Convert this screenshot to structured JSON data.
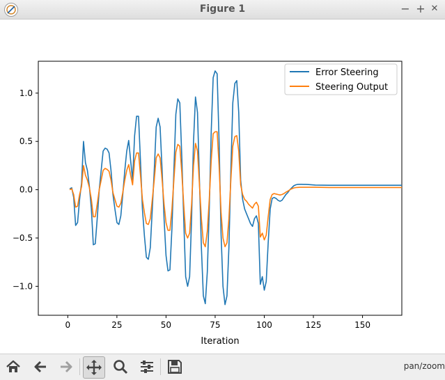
{
  "window": {
    "title": "Figure 1",
    "controls": {
      "minimize": "−",
      "maximize": "+",
      "close": "✕"
    }
  },
  "toolbar": {
    "buttons": [
      "home-icon",
      "back-icon",
      "forward-icon",
      "pan-icon",
      "zoom-icon",
      "configure-subplots-icon",
      "save-icon"
    ],
    "active": "pan-icon",
    "mode_text": "pan/zoom"
  },
  "chart_data": {
    "type": "line",
    "xlabel": "Iteration",
    "ylabel": "",
    "title": "",
    "xlim": [
      -15,
      170
    ],
    "ylim": [
      -1.3,
      1.33
    ],
    "xticks": [
      0,
      25,
      50,
      75,
      100,
      125,
      150
    ],
    "yticks": [
      -1.0,
      -0.5,
      0.0,
      0.5,
      1.0
    ],
    "xtick_labels": [
      "0",
      "25",
      "50",
      "75",
      "100",
      "125",
      "150"
    ],
    "ytick_labels": [
      "−1.0",
      "−0.5",
      "0.0",
      "0.5",
      "1.0"
    ],
    "legend": "top-right",
    "series": [
      {
        "name": "Error Steering",
        "color": "#1f77b4",
        "points": [
          [
            1,
            0.01
          ],
          [
            2,
            0.02
          ],
          [
            3,
            -0.08
          ],
          [
            4,
            -0.37
          ],
          [
            5,
            -0.34
          ],
          [
            6,
            -0.1
          ],
          [
            7,
            0.07
          ],
          [
            8,
            0.5
          ],
          [
            9,
            0.28
          ],
          [
            10,
            0.2
          ],
          [
            11,
            0.03
          ],
          [
            12,
            -0.2
          ],
          [
            13,
            -0.57
          ],
          [
            14,
            -0.56
          ],
          [
            15,
            -0.3
          ],
          [
            16,
            0.0
          ],
          [
            17,
            0.2
          ],
          [
            18,
            0.4
          ],
          [
            19,
            0.43
          ],
          [
            20,
            0.42
          ],
          [
            21,
            0.38
          ],
          [
            22,
            0.2
          ],
          [
            23,
            -0.05
          ],
          [
            24,
            -0.2
          ],
          [
            25,
            -0.34
          ],
          [
            26,
            -0.36
          ],
          [
            27,
            -0.27
          ],
          [
            28,
            -0.05
          ],
          [
            29,
            0.2
          ],
          [
            30,
            0.4
          ],
          [
            31,
            0.51
          ],
          [
            32,
            0.3
          ],
          [
            33,
            0.1
          ],
          [
            34,
            0.56
          ],
          [
            35,
            0.76
          ],
          [
            36,
            0.76
          ],
          [
            37,
            0.3
          ],
          [
            38,
            -0.2
          ],
          [
            39,
            -0.48
          ],
          [
            40,
            -0.7
          ],
          [
            41,
            -0.72
          ],
          [
            42,
            -0.6
          ],
          [
            43,
            -0.2
          ],
          [
            44,
            0.2
          ],
          [
            45,
            0.65
          ],
          [
            46,
            0.74
          ],
          [
            47,
            0.65
          ],
          [
            48,
            0.2
          ],
          [
            49,
            -0.3
          ],
          [
            50,
            -0.68
          ],
          [
            51,
            -0.84
          ],
          [
            52,
            -0.83
          ],
          [
            53,
            -0.4
          ],
          [
            54,
            0.2
          ],
          [
            55,
            0.78
          ],
          [
            56,
            0.94
          ],
          [
            57,
            0.9
          ],
          [
            58,
            0.35
          ],
          [
            59,
            -0.3
          ],
          [
            60,
            -0.9
          ],
          [
            61,
            -1.0
          ],
          [
            62,
            -0.9
          ],
          [
            63,
            -0.3
          ],
          [
            64,
            0.5
          ],
          [
            65,
            0.96
          ],
          [
            66,
            0.8
          ],
          [
            67,
            0.1
          ],
          [
            68,
            -0.6
          ],
          [
            69,
            -1.1
          ],
          [
            70,
            -1.18
          ],
          [
            71,
            -0.85
          ],
          [
            72,
            -0.2
          ],
          [
            73,
            0.6
          ],
          [
            74,
            1.16
          ],
          [
            75,
            1.23
          ],
          [
            76,
            1.2
          ],
          [
            77,
            0.5
          ],
          [
            78,
            -0.45
          ],
          [
            79,
            -1.0
          ],
          [
            80,
            -1.19
          ],
          [
            81,
            -1.1
          ],
          [
            82,
            -0.6
          ],
          [
            83,
            0.2
          ],
          [
            84,
            0.9
          ],
          [
            85,
            1.1
          ],
          [
            86,
            1.13
          ],
          [
            87,
            0.8
          ],
          [
            88,
            0.1
          ],
          [
            89,
            -0.1
          ],
          [
            90,
            -0.2
          ],
          [
            91,
            -0.25
          ],
          [
            92,
            -0.3
          ],
          [
            93,
            -0.35
          ],
          [
            94,
            -0.38
          ],
          [
            95,
            -0.3
          ],
          [
            96,
            -0.27
          ],
          [
            97,
            -0.35
          ],
          [
            98,
            -0.98
          ],
          [
            99,
            -0.9
          ],
          [
            100,
            -1.04
          ],
          [
            101,
            -0.95
          ],
          [
            102,
            -0.55
          ],
          [
            103,
            -0.2
          ],
          [
            104,
            -0.09
          ],
          [
            105,
            -0.08
          ],
          [
            106,
            -0.09
          ],
          [
            107,
            -0.11
          ],
          [
            108,
            -0.12
          ],
          [
            109,
            -0.11
          ],
          [
            110,
            -0.08
          ],
          [
            111,
            -0.05
          ],
          [
            112,
            -0.03
          ],
          [
            113,
            0.0
          ],
          [
            114,
            0.02
          ],
          [
            115,
            0.04
          ],
          [
            116,
            0.05
          ],
          [
            117,
            0.055
          ],
          [
            118,
            0.056
          ],
          [
            119,
            0.056
          ],
          [
            120,
            0.055
          ],
          [
            121,
            0.055
          ],
          [
            122,
            0.054
          ],
          [
            126,
            0.048
          ],
          [
            133,
            0.046
          ],
          [
            170,
            0.046
          ]
        ]
      },
      {
        "name": "Steering Output",
        "color": "#ff7f0e",
        "points": [
          [
            1,
            0.0
          ],
          [
            2,
            0.01
          ],
          [
            3,
            -0.05
          ],
          [
            4,
            -0.18
          ],
          [
            5,
            -0.17
          ],
          [
            6,
            -0.05
          ],
          [
            7,
            0.03
          ],
          [
            8,
            0.25
          ],
          [
            9,
            0.15
          ],
          [
            10,
            0.1
          ],
          [
            11,
            0.02
          ],
          [
            12,
            -0.1
          ],
          [
            13,
            -0.28
          ],
          [
            14,
            -0.28
          ],
          [
            15,
            -0.15
          ],
          [
            16,
            0.0
          ],
          [
            17,
            0.1
          ],
          [
            18,
            0.2
          ],
          [
            19,
            0.22
          ],
          [
            20,
            0.21
          ],
          [
            21,
            0.19
          ],
          [
            22,
            0.1
          ],
          [
            23,
            -0.03
          ],
          [
            24,
            -0.1
          ],
          [
            25,
            -0.17
          ],
          [
            26,
            -0.18
          ],
          [
            27,
            -0.14
          ],
          [
            28,
            -0.03
          ],
          [
            29,
            0.1
          ],
          [
            30,
            0.2
          ],
          [
            31,
            0.26
          ],
          [
            32,
            0.15
          ],
          [
            33,
            0.05
          ],
          [
            34,
            0.3
          ],
          [
            35,
            0.38
          ],
          [
            36,
            0.38
          ],
          [
            37,
            0.15
          ],
          [
            38,
            -0.1
          ],
          [
            39,
            -0.24
          ],
          [
            40,
            -0.35
          ],
          [
            41,
            -0.36
          ],
          [
            42,
            -0.3
          ],
          [
            43,
            -0.1
          ],
          [
            44,
            0.1
          ],
          [
            45,
            0.33
          ],
          [
            46,
            0.37
          ],
          [
            47,
            0.33
          ],
          [
            48,
            0.1
          ],
          [
            49,
            -0.15
          ],
          [
            50,
            -0.34
          ],
          [
            51,
            -0.42
          ],
          [
            52,
            -0.42
          ],
          [
            53,
            -0.2
          ],
          [
            54,
            0.1
          ],
          [
            55,
            0.39
          ],
          [
            56,
            0.47
          ],
          [
            57,
            0.45
          ],
          [
            58,
            0.18
          ],
          [
            59,
            -0.15
          ],
          [
            60,
            -0.45
          ],
          [
            61,
            -0.5
          ],
          [
            62,
            -0.45
          ],
          [
            63,
            -0.15
          ],
          [
            64,
            0.25
          ],
          [
            65,
            0.48
          ],
          [
            66,
            0.4
          ],
          [
            67,
            0.05
          ],
          [
            68,
            -0.3
          ],
          [
            69,
            -0.55
          ],
          [
            70,
            -0.59
          ],
          [
            71,
            -0.43
          ],
          [
            72,
            -0.1
          ],
          [
            73,
            0.3
          ],
          [
            74,
            0.58
          ],
          [
            75,
            0.6
          ],
          [
            76,
            0.6
          ],
          [
            77,
            0.25
          ],
          [
            78,
            -0.23
          ],
          [
            79,
            -0.5
          ],
          [
            80,
            -0.59
          ],
          [
            81,
            -0.55
          ],
          [
            82,
            -0.3
          ],
          [
            83,
            0.1
          ],
          [
            84,
            0.45
          ],
          [
            85,
            0.55
          ],
          [
            86,
            0.56
          ],
          [
            87,
            0.4
          ],
          [
            88,
            0.05
          ],
          [
            89,
            -0.05
          ],
          [
            90,
            -0.1
          ],
          [
            91,
            -0.12
          ],
          [
            92,
            -0.15
          ],
          [
            93,
            -0.17
          ],
          [
            94,
            -0.19
          ],
          [
            95,
            -0.15
          ],
          [
            96,
            -0.13
          ],
          [
            97,
            -0.17
          ],
          [
            98,
            -0.49
          ],
          [
            99,
            -0.45
          ],
          [
            100,
            -0.52
          ],
          [
            101,
            -0.47
          ],
          [
            102,
            -0.28
          ],
          [
            103,
            -0.1
          ],
          [
            104,
            -0.05
          ],
          [
            105,
            -0.04
          ],
          [
            106,
            -0.045
          ],
          [
            107,
            -0.05
          ],
          [
            108,
            -0.055
          ],
          [
            109,
            -0.05
          ],
          [
            110,
            -0.04
          ],
          [
            111,
            -0.025
          ],
          [
            112,
            -0.015
          ],
          [
            113,
            0.0
          ],
          [
            114,
            0.01
          ],
          [
            115,
            0.018
          ],
          [
            116,
            0.022
          ],
          [
            117,
            0.024
          ],
          [
            118,
            0.025
          ],
          [
            119,
            0.025
          ],
          [
            126,
            0.025
          ],
          [
            133,
            0.023
          ],
          [
            170,
            0.023
          ]
        ]
      }
    ]
  }
}
